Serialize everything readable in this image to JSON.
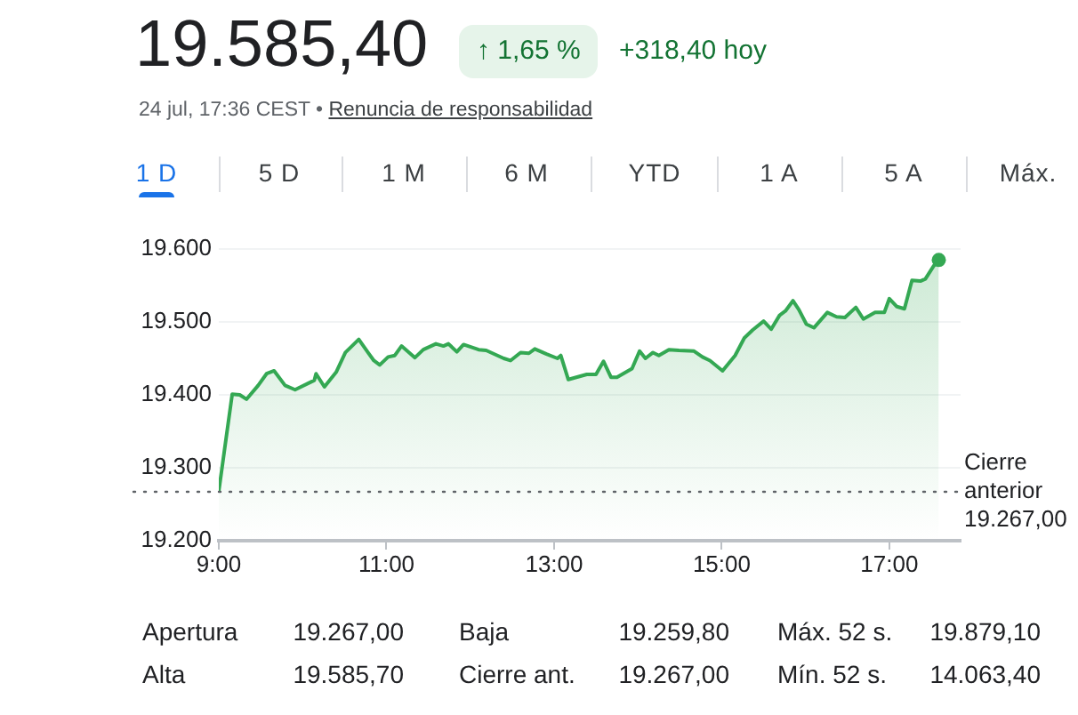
{
  "chart_data": {
    "type": "area",
    "title": "19.585,40",
    "subtitle": "24 jul, 17:36 CEST • Renuncia de responsabilidad",
    "annotations": [
      "↑ 1,65 %",
      "+318,40 hoy",
      "1 D",
      "5 D",
      "1 M",
      "6 M",
      "YTD",
      "1 A",
      "5 A",
      "Máx.",
      "Apertura",
      "19.267,00",
      "Baja",
      "19.259,80",
      "Máx. 52 s.",
      "19.879,10",
      "Alta",
      "19.585,70",
      "Cierre ant.",
      "19.267,00",
      "Mín. 52 s.",
      "14.063,40"
    ],
    "x": [
      9.0,
      9.16,
      9.25,
      9.33,
      9.47,
      9.57,
      9.66,
      9.79,
      9.91,
      10.14,
      10.16,
      10.26,
      10.4,
      10.51,
      10.67,
      10.78,
      10.85,
      10.92,
      11.02,
      11.1,
      11.18,
      11.34,
      11.44,
      11.59,
      11.68,
      11.74,
      11.84,
      11.92,
      12.1,
      12.19,
      12.4,
      12.48,
      12.6,
      12.7,
      12.77,
      12.91,
      13.04,
      13.08,
      13.17,
      13.39,
      13.5,
      13.59,
      13.68,
      13.75,
      13.93,
      14.02,
      14.09,
      14.18,
      14.25,
      14.37,
      14.49,
      14.67,
      14.77,
      14.86,
      15.01,
      15.16,
      15.27,
      15.37,
      15.5,
      15.59,
      15.69,
      15.76,
      15.85,
      15.92,
      16.01,
      16.1,
      16.26,
      16.37,
      16.47,
      16.6,
      16.69,
      16.83,
      16.94,
      17.0,
      17.09,
      17.18,
      17.27,
      17.37,
      17.43,
      17.53,
      17.59
    ],
    "series": [
      {
        "color": "#34a853",
        "values": [
          19268,
          19401,
          19400,
          19394,
          19413,
          19429,
          19433,
          19413,
          19407,
          19420,
          19429,
          19411,
          19431,
          19458,
          19476,
          19458,
          19447,
          19441,
          19452,
          19454,
          19467,
          19451,
          19462,
          19470,
          19467,
          19470,
          19459,
          19469,
          19462,
          19461,
          19450,
          19447,
          19458,
          19457,
          19463,
          19456,
          19450,
          19454,
          19421,
          19428,
          19428,
          19446,
          19424,
          19424,
          19436,
          19460,
          19450,
          19458,
          19454,
          19462,
          19461,
          19460,
          19452,
          19447,
          19433,
          19454,
          19478,
          19489,
          19501,
          19490,
          19509,
          19515,
          19529,
          19517,
          19497,
          19492,
          19513,
          19507,
          19506,
          19520,
          19504,
          19513,
          19513,
          19532,
          19521,
          19518,
          19557,
          19556,
          19559,
          19577,
          19585
        ]
      }
    ],
    "xlim": [
      9,
      17.85
    ],
    "xticks": [
      {
        "value": 9,
        "label": "9:00"
      },
      {
        "value": 11,
        "label": "11:00"
      },
      {
        "value": 13,
        "label": "13:00"
      },
      {
        "value": 15,
        "label": "15:00"
      },
      {
        "value": 17,
        "label": "17:00"
      }
    ],
    "ylim": [
      19200,
      19600
    ],
    "yticks": [
      {
        "value": 19200,
        "label": "19.200"
      },
      {
        "value": 19300,
        "label": "19.300"
      },
      {
        "value": 19400,
        "label": "19.400"
      },
      {
        "value": 19500,
        "label": "19.500"
      },
      {
        "value": 19600,
        "label": "19.600"
      }
    ],
    "ref_lines": [
      {
        "axis": "y",
        "value": 19267,
        "label": "Cierre anterior 19.267,00",
        "color": "#5f6368",
        "line_style": "dotted"
      }
    ],
    "grid": "y",
    "legend": false
  }
}
